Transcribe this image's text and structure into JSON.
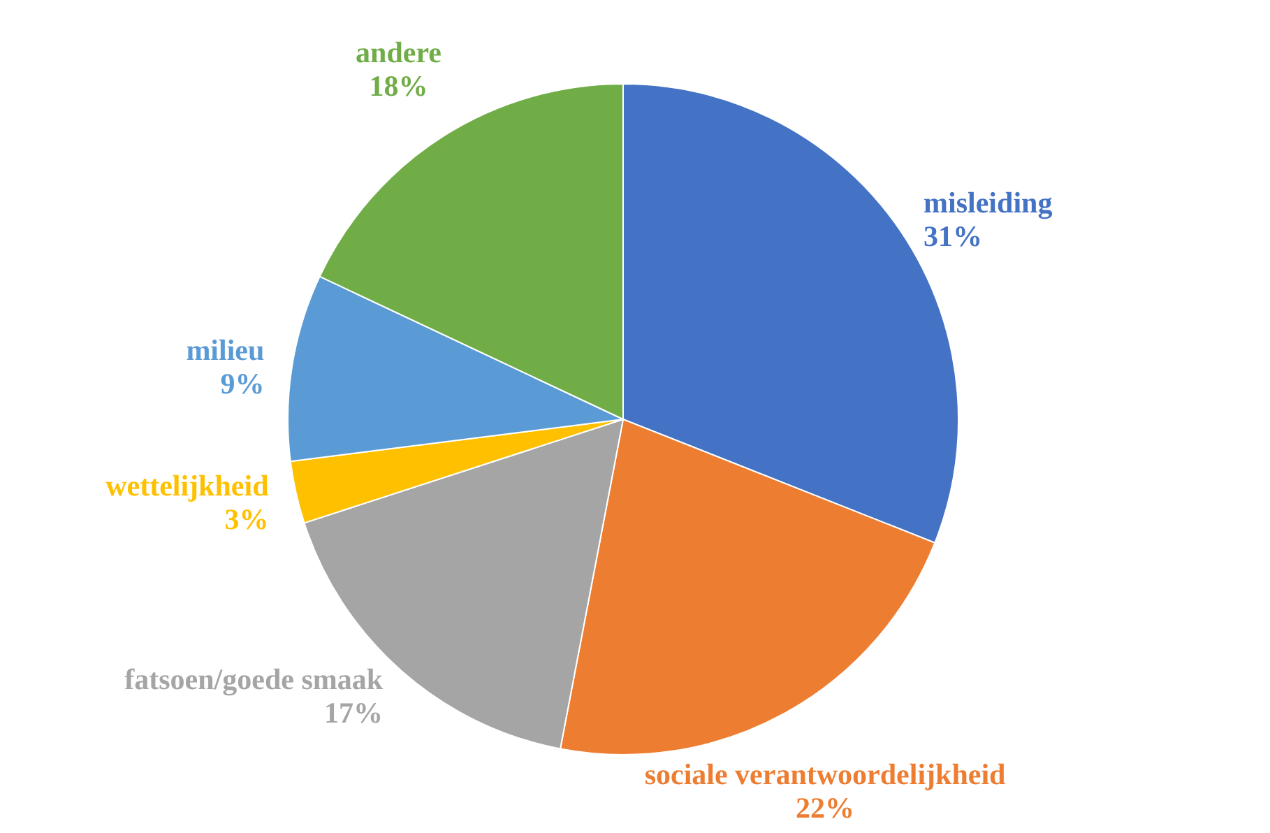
{
  "chart_data": {
    "type": "pie",
    "categories": [
      "misleiding",
      "sociale verantwoordelijkheid",
      "fatsoen/goede smaak",
      "wettelijkheid",
      "milieu",
      "andere"
    ],
    "values": [
      31,
      22,
      17,
      3,
      9,
      18
    ],
    "colors": [
      "#4472c4",
      "#ed7d31",
      "#a5a5a5",
      "#ffc000",
      "#5b9bd5",
      "#70ad47"
    ],
    "value_labels": [
      "31%",
      "22%",
      "17%",
      "3%",
      "9%",
      "18%"
    ],
    "legend": false
  }
}
